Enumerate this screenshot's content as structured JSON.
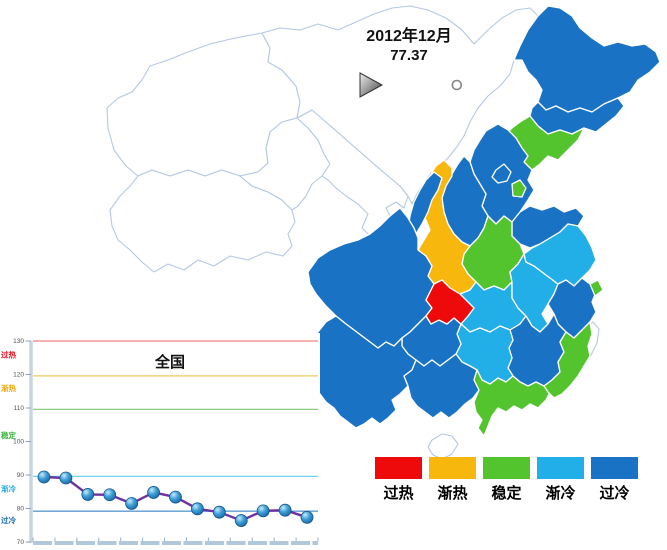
{
  "title": {
    "period": "2012年12月",
    "value": "77.37"
  },
  "slider": {
    "progress": 0.97
  },
  "legend_order": [
    "overheat",
    "warming",
    "stable",
    "cooling",
    "overcool"
  ],
  "statuses": {
    "overheat": {
      "label": "过热",
      "color": "#ee0a0a"
    },
    "warming": {
      "label": "渐热",
      "color": "#f7b70c"
    },
    "stable": {
      "label": "稳定",
      "color": "#53c42e"
    },
    "cooling": {
      "label": "渐冷",
      "color": "#22aee6"
    },
    "overcool": {
      "label": "过冷",
      "color": "#1a72c4"
    }
  },
  "map_style": {
    "no_data_fill": "#ffffff",
    "no_data_border": "#b5c8e4",
    "region_border": "#ffffff"
  },
  "chart_data": [
    {
      "type": "choropleth",
      "legend": [
        "过热",
        "渐热",
        "稳定",
        "渐冷",
        "过冷"
      ],
      "regions": [
        {
          "id": "xinjiang",
          "status": null
        },
        {
          "id": "xizang",
          "status": null
        },
        {
          "id": "qinghai",
          "status": null
        },
        {
          "id": "gansu",
          "status": null
        },
        {
          "id": "neimenggu",
          "status": null
        },
        {
          "id": "hainan",
          "status": null
        },
        {
          "id": "taiwan",
          "status": null
        },
        {
          "id": "heilongjiang",
          "status": "overcool"
        },
        {
          "id": "jilin",
          "status": "overcool"
        },
        {
          "id": "liaoning",
          "status": "stable"
        },
        {
          "id": "hebei",
          "status": "overcool"
        },
        {
          "id": "shanxi",
          "status": "overcool"
        },
        {
          "id": "shandong",
          "status": "overcool"
        },
        {
          "id": "henan",
          "status": "stable"
        },
        {
          "id": "shaanxi",
          "status": "warming"
        },
        {
          "id": "ningxia",
          "status": "overcool"
        },
        {
          "id": "sichuan",
          "status": "overcool"
        },
        {
          "id": "hubei",
          "status": "cooling"
        },
        {
          "id": "anhui",
          "status": "cooling"
        },
        {
          "id": "jiangsu",
          "status": "cooling"
        },
        {
          "id": "zhejiang",
          "status": "overcool"
        },
        {
          "id": "jiangxi",
          "status": "overcool"
        },
        {
          "id": "hunan",
          "status": "cooling"
        },
        {
          "id": "guizhou",
          "status": "overcool"
        },
        {
          "id": "yunnan",
          "status": "overcool"
        },
        {
          "id": "guangxi",
          "status": "overcool"
        },
        {
          "id": "guangdong",
          "status": "stable"
        },
        {
          "id": "fujian",
          "status": "stable"
        },
        {
          "id": "chongqing",
          "status": "overheat"
        },
        {
          "id": "beijing",
          "status": "overcool"
        },
        {
          "id": "tianjin",
          "status": "stable"
        },
        {
          "id": "shanghai",
          "status": "stable"
        }
      ]
    },
    {
      "type": "line",
      "title": "全国",
      "ylim": [
        70,
        130
      ],
      "y_ticks": [
        70,
        80,
        90,
        100,
        110,
        120,
        130
      ],
      "values": [
        89.4,
        89.1,
        84.2,
        84.1,
        81.5,
        84.8,
        83.4,
        79.9,
        78.9,
        76.4,
        79.3,
        79.5,
        77.37
      ],
      "line_color": "#7030a0",
      "marker_colors": {
        "light": "#c8ecfc",
        "mid": "#3fa0d8",
        "dark": "#17629f"
      },
      "zones": [
        {
          "label": "过热",
          "line_value": 130.0,
          "label_value": 126.0,
          "line_color": "#f28080",
          "label_color": "#f00f1e"
        },
        {
          "label": "渐热",
          "line_value": 119.6,
          "label_value": 116.0,
          "line_color": "#f2c75e",
          "label_color": "#f0a80a"
        },
        {
          "label": "稳定",
          "line_value": 109.6,
          "label_value": 102.0,
          "line_color": "#8fcc82",
          "label_color": "#3cb43c"
        },
        {
          "label": "渐冷",
          "line_value": 89.6,
          "label_value": 86.0,
          "line_color": "#6fd2f2",
          "label_color": "#25aae1"
        },
        {
          "label": "过冷",
          "line_value": 79.2,
          "label_value": 76.5,
          "line_color": "#5e9bd2",
          "label_color": "#1b6fc0"
        }
      ]
    }
  ]
}
